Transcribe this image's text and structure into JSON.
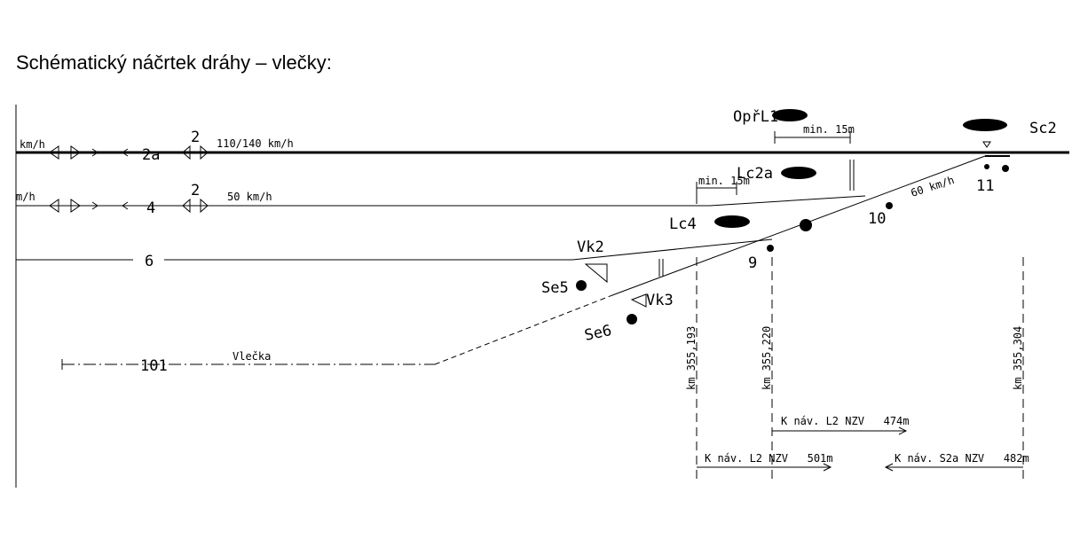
{
  "title": "Schématický náčrtek dráhy – vlečky:",
  "tracks": [
    {
      "speed_prefix": "km/h",
      "label": "2a",
      "marker": "2",
      "speed": "110/140 km/h"
    },
    {
      "speed_prefix": "m/h",
      "label": "4",
      "marker": "2",
      "speed": "50 km/h"
    },
    {
      "label": "6"
    },
    {
      "label": "101",
      "name": "Vlečka"
    }
  ],
  "signals": [
    "OpřL1",
    "Lc2a",
    "Lc4",
    "Vk2",
    "Se5",
    "Vk3",
    "Se6",
    "Sc2"
  ],
  "min_distances": [
    "min. 15m",
    "min. 15m"
  ],
  "switches": [
    "9",
    "10",
    "11"
  ],
  "branch_speed": "60 km/h",
  "kilometres": [
    "km 355,193",
    "km 355,220",
    "km 355,304"
  ],
  "distances": [
    "K náv. L2 NZV   474m",
    "K náv. L2 NZV   501m",
    "K náv. S2a NZV   482m"
  ]
}
